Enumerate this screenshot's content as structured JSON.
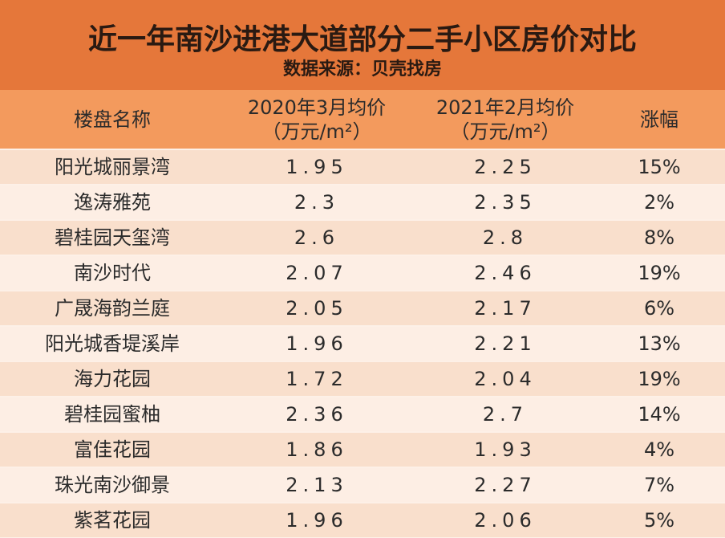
{
  "header": {
    "title": "近一年南沙进港大道部分二手小区房价对比",
    "source": "数据来源：贝壳找房"
  },
  "table": {
    "columns": [
      [
        "楼盘名称"
      ],
      [
        "2020年3月均价",
        "（万元/m²）"
      ],
      [
        "2021年2月均价",
        "（万元/m²）"
      ],
      [
        "涨幅"
      ]
    ],
    "rows": [
      [
        "阳光城丽景湾",
        "1.95",
        "2.25",
        "15%"
      ],
      [
        "逸涛雅苑",
        "2.3",
        "2.35",
        "2%"
      ],
      [
        "碧桂园天玺湾",
        "2.6",
        "2.8",
        "8%"
      ],
      [
        "南沙时代",
        "2.07",
        "2.46",
        "19%"
      ],
      [
        "广晟海韵兰庭",
        "2.05",
        "2.17",
        "6%"
      ],
      [
        "阳光城香堤溪岸",
        "1.96",
        "2.21",
        "13%"
      ],
      [
        "海力花园",
        "1.72",
        "2.04",
        "19%"
      ],
      [
        "碧桂园蜜柚",
        "2.36",
        "2.7",
        "14%"
      ],
      [
        "富佳花园",
        "1.86",
        "1.93",
        "4%"
      ],
      [
        "珠光南沙御景",
        "2.13",
        "2.27",
        "7%"
      ],
      [
        "紫茗花园",
        "1.96",
        "2.06",
        "5%"
      ]
    ]
  }
}
